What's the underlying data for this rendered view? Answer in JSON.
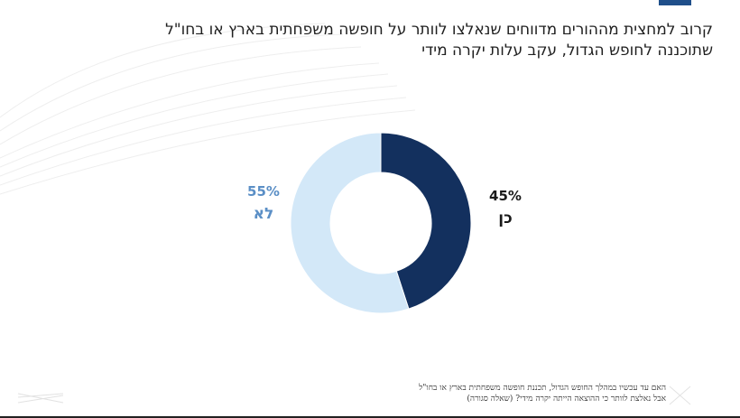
{
  "title": {
    "line1": "קרוב למחצית מההורים מדווחים שנאלצו לוותר על חופשה משפחתית בארץ או בחו\"ל",
    "line2": "שתוכננה לחופש הגדול, עקב עלות יקרה מידי"
  },
  "chart_data": {
    "type": "pie",
    "donut": true,
    "slices": [
      {
        "label": "כן",
        "value": 45,
        "value_label": "45%",
        "color": "#13305e"
      },
      {
        "label": "לא",
        "value": 55,
        "value_label": "55%",
        "color": "#d3e8f8"
      }
    ],
    "label_colors": {
      "כן": "#1a1a1a",
      "לא": "#5b8fc6"
    }
  },
  "footnote": {
    "line1": "האם עד עכשיו במהלך החופש הגדול, תכננת חופשה משפחתית בארץ או בחו\"ל",
    "line2": "אבל נאלצת לוותר כי ההוצאה הייתה יקרה מידי? (שאלה סגורה)"
  }
}
